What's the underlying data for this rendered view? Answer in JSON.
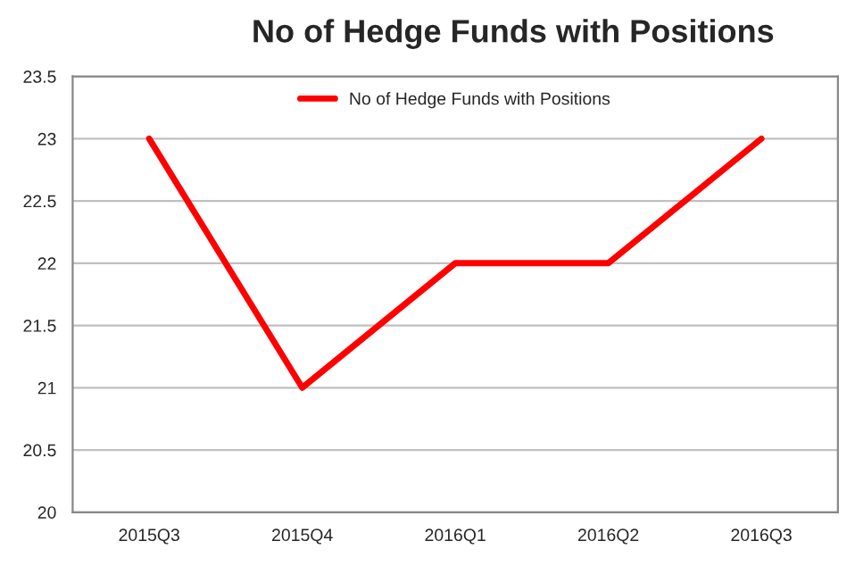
{
  "chart_data": {
    "type": "line",
    "title": "No of Hedge Funds with Positions",
    "categories": [
      "2015Q3",
      "2015Q4",
      "2016Q1",
      "2016Q2",
      "2016Q3"
    ],
    "series": [
      {
        "name": "No of Hedge Funds with Positions",
        "color": "#ff0000",
        "values": [
          23,
          21,
          22,
          22,
          23
        ]
      }
    ],
    "ylim": [
      20,
      23.5
    ],
    "yticks": [
      20,
      20.5,
      21,
      21.5,
      22,
      22.5,
      23,
      23.5
    ],
    "grid": "y",
    "legend": "top",
    "marker": "none",
    "line_style": "solid"
  }
}
